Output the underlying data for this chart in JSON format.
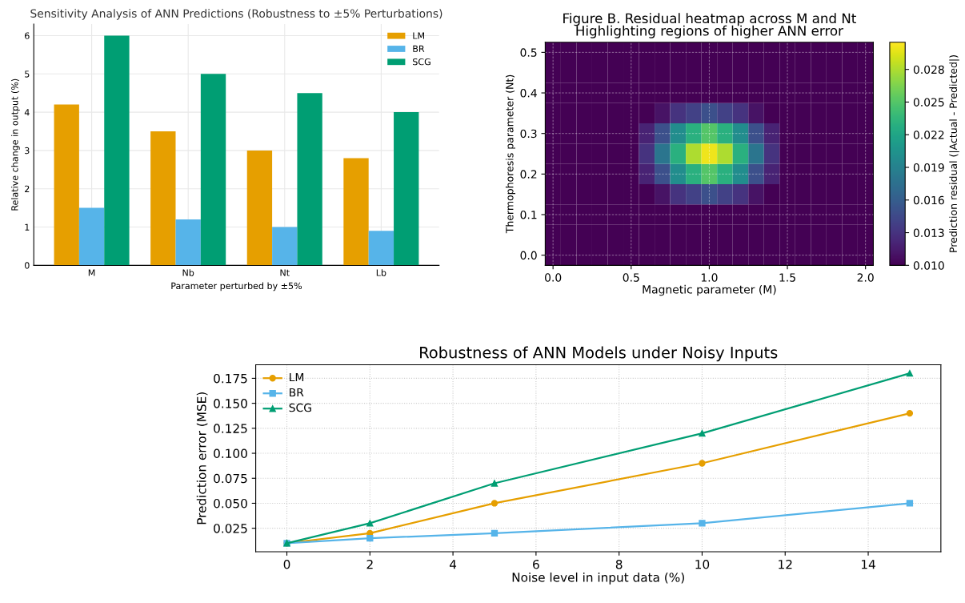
{
  "chart_data": [
    {
      "type": "bar",
      "title": "Sensitivity Analysis of ANN Predictions (Robustness to ±5% Perturbations)",
      "xlabel": "Parameter perturbed by ±5%",
      "ylabel": "Relative change in output (%)",
      "categories": [
        "M",
        "Nb",
        "Nt",
        "Lb"
      ],
      "series": [
        {
          "name": "LM",
          "color": "#e69f00",
          "values": [
            4.2,
            3.5,
            3.0,
            2.8
          ]
        },
        {
          "name": "BR",
          "color": "#56b4e9",
          "values": [
            1.5,
            1.2,
            1.0,
            0.9
          ]
        },
        {
          "name": "SCG",
          "color": "#009e73",
          "values": [
            6.0,
            5.0,
            4.5,
            4.0
          ]
        }
      ],
      "ylim": [
        0,
        6.3
      ],
      "yticks": [
        0,
        1,
        2,
        3,
        4,
        5,
        6
      ],
      "grid": true,
      "legend": "top right"
    },
    {
      "type": "heatmap",
      "title": "Figure B. Residual heatmap across M and Nt\nHighlighting regions of higher ANN error",
      "xlabel": "Magnetic parameter (M)",
      "ylabel": "Thermophoresis parameter (Nt)",
      "clabel": "Prediction residual (|Actual - Predicted|)",
      "categories": [
        "0.0",
        null,
        null,
        null,
        null,
        "0.5",
        null,
        null,
        null,
        null,
        "1.0",
        null,
        null,
        null,
        null,
        "1.5",
        null,
        null,
        null,
        null,
        "2.0"
      ],
      "y_categories": [
        "0.5",
        null,
        "0.4",
        null,
        "0.3",
        null,
        "0.2",
        null,
        "0.1",
        null,
        "0.0"
      ],
      "cells": [
        [
          0.01,
          0.01,
          0.01,
          0.01,
          0.01,
          0.01,
          0.01,
          0.01,
          0.01,
          0.01,
          0.01,
          0.01,
          0.01,
          0.01,
          0.01,
          0.01,
          0.01,
          0.01,
          0.01,
          0.01,
          0.01
        ],
        [
          0.01,
          0.01,
          0.01,
          0.01,
          0.01,
          0.01,
          0.01,
          0.01,
          0.01,
          0.01,
          0.01,
          0.01,
          0.01,
          0.01,
          0.01,
          0.01,
          0.01,
          0.01,
          0.01,
          0.01,
          0.01
        ],
        [
          0.01,
          0.01,
          0.01,
          0.01,
          0.01,
          0.01,
          0.01,
          0.01,
          0.01,
          0.01,
          0.01,
          0.01,
          0.01,
          0.01,
          0.01,
          0.01,
          0.01,
          0.01,
          0.01,
          0.01,
          0.01
        ],
        [
          0.01,
          0.01,
          0.01,
          0.01,
          0.01,
          0.01,
          0.01,
          0.011,
          0.013,
          0.014,
          0.015,
          0.014,
          0.013,
          0.011,
          0.01,
          0.01,
          0.01,
          0.01,
          0.01,
          0.01,
          0.01
        ],
        [
          0.01,
          0.01,
          0.01,
          0.01,
          0.01,
          0.01,
          0.012,
          0.015,
          0.02,
          0.023,
          0.025,
          0.023,
          0.02,
          0.015,
          0.012,
          0.01,
          0.01,
          0.01,
          0.01,
          0.01,
          0.01
        ],
        [
          0.01,
          0.01,
          0.01,
          0.01,
          0.01,
          0.01,
          0.013,
          0.018,
          0.023,
          0.028,
          0.03,
          0.028,
          0.023,
          0.018,
          0.013,
          0.01,
          0.01,
          0.01,
          0.01,
          0.01,
          0.01
        ],
        [
          0.01,
          0.01,
          0.01,
          0.01,
          0.01,
          0.01,
          0.012,
          0.015,
          0.02,
          0.023,
          0.025,
          0.023,
          0.02,
          0.015,
          0.012,
          0.01,
          0.01,
          0.01,
          0.01,
          0.01,
          0.01
        ],
        [
          0.01,
          0.01,
          0.01,
          0.01,
          0.01,
          0.01,
          0.01,
          0.011,
          0.013,
          0.014,
          0.015,
          0.014,
          0.013,
          0.011,
          0.01,
          0.01,
          0.01,
          0.01,
          0.01,
          0.01,
          0.01
        ],
        [
          0.01,
          0.01,
          0.01,
          0.01,
          0.01,
          0.01,
          0.01,
          0.01,
          0.01,
          0.01,
          0.01,
          0.01,
          0.01,
          0.01,
          0.01,
          0.01,
          0.01,
          0.01,
          0.01,
          0.01,
          0.01
        ],
        [
          0.01,
          0.01,
          0.01,
          0.01,
          0.01,
          0.01,
          0.01,
          0.01,
          0.01,
          0.01,
          0.01,
          0.01,
          0.01,
          0.01,
          0.01,
          0.01,
          0.01,
          0.01,
          0.01,
          0.01,
          0.01
        ],
        [
          0.01,
          0.01,
          0.01,
          0.01,
          0.01,
          0.01,
          0.01,
          0.01,
          0.01,
          0.01,
          0.01,
          0.01,
          0.01,
          0.01,
          0.01,
          0.01,
          0.01,
          0.01,
          0.01,
          0.01,
          0.01
        ]
      ],
      "clim": [
        0.01,
        0.0305
      ],
      "cticks": [
        {
          "value": 0.01,
          "label": "0.010"
        },
        0.013,
        0.016,
        0.019,
        0.022,
        0.025,
        0.028
      ],
      "grid": true
    },
    {
      "type": "line",
      "title": "Robustness of ANN Models under Noisy Inputs",
      "xlabel": "Noise level in input data (%)",
      "ylabel": "Prediction error (MSE)",
      "x": [
        0,
        2,
        5,
        10,
        15
      ],
      "series": [
        {
          "name": "LM",
          "color": "#e69f00",
          "marker": "circle",
          "values": [
            0.01,
            0.02,
            0.05,
            0.09,
            0.14
          ]
        },
        {
          "name": "BR",
          "color": "#56b4e9",
          "marker": "square",
          "values": [
            0.01,
            0.015,
            0.02,
            0.03,
            0.05
          ]
        },
        {
          "name": "SCG",
          "color": "#009e73",
          "marker": "triangle",
          "values": [
            0.01,
            0.03,
            0.07,
            0.12,
            0.18
          ]
        }
      ],
      "xlim": [
        -0.75,
        15.75
      ],
      "ylim": [
        0.0015,
        0.1885
      ],
      "xticks": [
        0,
        2,
        4,
        6,
        8,
        10,
        12,
        14
      ],
      "yticks": [
        {
          "value": 0.025,
          "label": "0.025"
        },
        {
          "value": 0.05,
          "label": "0.050"
        },
        {
          "value": 0.075,
          "label": "0.075"
        },
        {
          "value": 0.1,
          "label": "0.100"
        },
        {
          "value": 0.125,
          "label": "0.125"
        },
        {
          "value": 0.15,
          "label": "0.150"
        },
        {
          "value": 0.175,
          "label": "0.175"
        }
      ],
      "grid": true,
      "line_style": "solid",
      "legend": "top left"
    }
  ]
}
